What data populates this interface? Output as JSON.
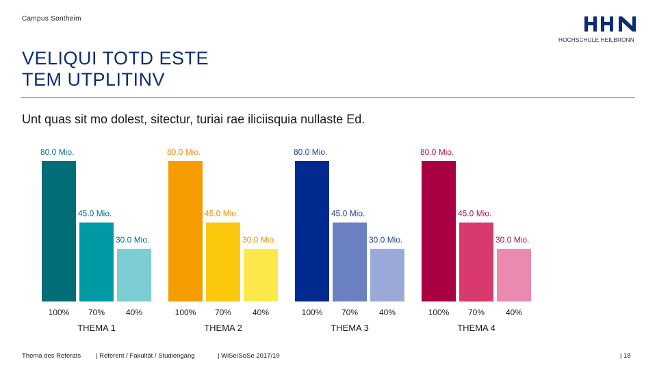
{
  "header": {
    "campus": "Campus Sontheim",
    "logo_letters": "HHN",
    "logo_subtitle": "HOCHSCHULE HEILBRONN",
    "title_lines": [
      "VELIQUI TOTD ESTE",
      "TEM UTPLITINV"
    ],
    "subtitle": "Unt quas sit mo dolest, sitectur, turiai rae iliciisquia nullaste Ed."
  },
  "chart_data": {
    "type": "bar",
    "ylim": [
      0,
      80
    ],
    "categories": [
      "100%",
      "70%",
      "40%"
    ],
    "groups": [
      {
        "name": "THEMA 1",
        "values": [
          80.0,
          45.0,
          30.0
        ],
        "labels": [
          "80.0 Mio.",
          "45.0 Mio.",
          "30.0 Mio."
        ],
        "colors": [
          "#006d77",
          "#0099a6",
          "#7ccdd1"
        ]
      },
      {
        "name": "THEMA 2",
        "values": [
          80.0,
          45.0,
          30.0
        ],
        "labels": [
          "80.0 Mio.",
          "45.0 Mio.",
          "30.0 Mio."
        ],
        "colors": [
          "#f59c00",
          "#fcc80e",
          "#fde84a"
        ]
      },
      {
        "name": "THEMA 3",
        "values": [
          80.0,
          45.0,
          30.0
        ],
        "labels": [
          "80.0 Mio.",
          "45.0 Mio.",
          "30.0 Mio."
        ],
        "colors": [
          "#002a8f",
          "#6a80c0",
          "#9aa9d8"
        ]
      },
      {
        "name": "THEMA 4",
        "values": [
          80.0,
          45.0,
          30.0
        ],
        "labels": [
          "80.0 Mio.",
          "45.0 Mio.",
          "30.0 Mio."
        ],
        "colors": [
          "#a80042",
          "#d93a6e",
          "#eb8ab0"
        ]
      }
    ],
    "label_colors": [
      "#00727d",
      "#f08c00",
      "#1f3e97",
      "#b0104e"
    ]
  },
  "footer": {
    "topic": "Thema des Referats",
    "referent": "| Referent / Fakultät / Studiengang",
    "semester": "| WiSe/SoSe 2017/19",
    "page": "| 18"
  }
}
